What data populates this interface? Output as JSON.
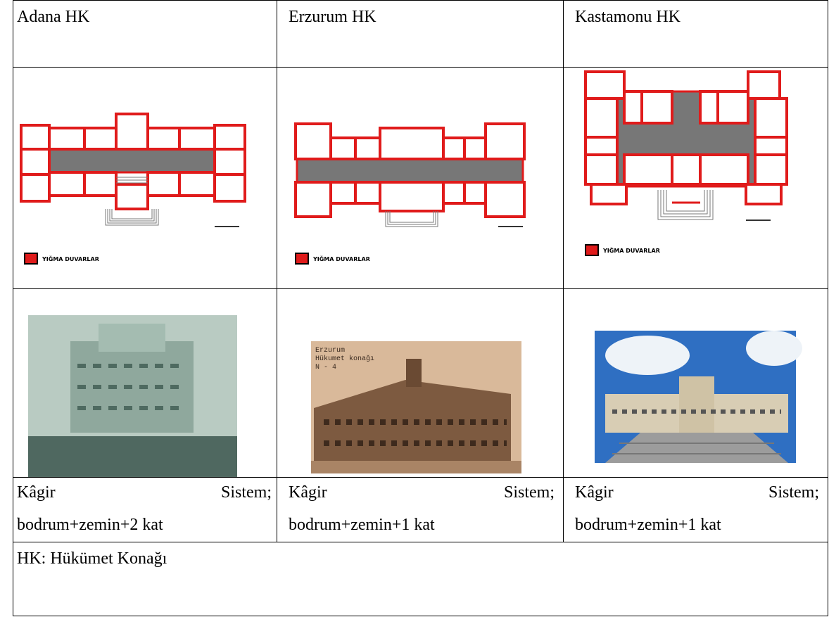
{
  "header": [
    "Adana HK",
    "Erzurum HK",
    "Kastamonu HK"
  ],
  "legend": [
    "YIĞMA DUVARLAR",
    "YIĞMA DUVARLAR",
    "YIĞMA DUVARLAR"
  ],
  "erzurum_photo_text": [
    "Erzurum",
    "Hükumet konağı",
    "N - 4"
  ],
  "descriptions": [
    [
      "Kâgir Sistem;",
      "bodrum+zemin+2 kat"
    ],
    [
      "Kâgir Sistem;",
      "bodrum+zemin+1 kat"
    ],
    [
      "Kâgir Sistem;",
      "bodrum+zemin+1 kat"
    ]
  ],
  "footnote": "HK: Hükümet Konağı"
}
